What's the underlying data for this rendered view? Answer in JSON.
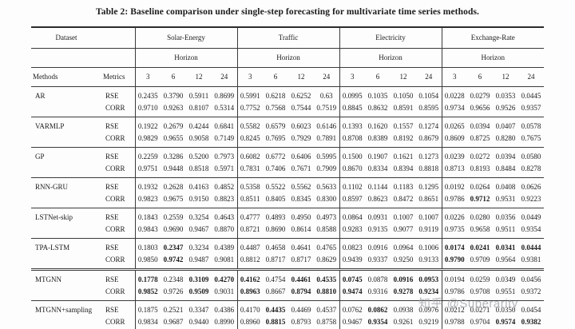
{
  "page": {
    "title": "Table 2: Baseline comparison under single-step forecasting for multivariate time series methods."
  },
  "watermark": {
    "text": "知乎 @Superarity"
  },
  "table": {
    "dataset_label": "Dataset",
    "methods_label": "Methods",
    "metrics_label": "Metrics",
    "horizon_label": "Horizon",
    "metric_names": [
      "RSE",
      "CORR"
    ],
    "groups": [
      "Solar-Energy",
      "Traffic",
      "Electricity",
      "Exchange-Rate"
    ],
    "horizons": [
      "3",
      "6",
      "12",
      "24"
    ],
    "rows": [
      {
        "method": "AR",
        "rse": [
          "0.2435",
          "0.3790",
          "0.5911",
          "0.8699",
          "0.5991",
          "0.6218",
          "0.6252",
          "0.63",
          "0.0995",
          "0.1035",
          "0.1050",
          "0.1054",
          "0.0228",
          "0.0279",
          "0.0353",
          "0.0445"
        ],
        "corr": [
          "0.9710",
          "0.9263",
          "0.8107",
          "0.5314",
          "0.7752",
          "0.7568",
          "0.7544",
          "0.7519",
          "0.8845",
          "0.8632",
          "0.8591",
          "0.8595",
          "0.9734",
          "0.9656",
          "0.9526",
          "0.9357"
        ],
        "rse_bold": [
          0,
          0,
          0,
          0,
          0,
          0,
          0,
          0,
          0,
          0,
          0,
          0,
          0,
          0,
          0,
          0
        ],
        "corr_bold": [
          0,
          0,
          0,
          0,
          0,
          0,
          0,
          0,
          0,
          0,
          0,
          0,
          0,
          0,
          0,
          0
        ]
      },
      {
        "method": "VARMLP",
        "rse": [
          "0.1922",
          "0.2679",
          "0.4244",
          "0.6841",
          "0.5582",
          "0.6579",
          "0.6023",
          "0.6146",
          "0.1393",
          "0.1620",
          "0.1557",
          "0.1274",
          "0.0265",
          "0.0394",
          "0.0407",
          "0.0578"
        ],
        "corr": [
          "0.9829",
          "0.9655",
          "0.9058",
          "0.7149",
          "0.8245",
          "0.7695",
          "0.7929",
          "0.7891",
          "0.8708",
          "0.8389",
          "0.8192",
          "0.8679",
          "0.8609",
          "0.8725",
          "0.8280",
          "0.7675"
        ],
        "rse_bold": [
          0,
          0,
          0,
          0,
          0,
          0,
          0,
          0,
          0,
          0,
          0,
          0,
          0,
          0,
          0,
          0
        ],
        "corr_bold": [
          0,
          0,
          0,
          0,
          0,
          0,
          0,
          0,
          0,
          0,
          0,
          0,
          0,
          0,
          0,
          0
        ]
      },
      {
        "method": "GP",
        "rse": [
          "0.2259",
          "0.3286",
          "0.5200",
          "0.7973",
          "0.6082",
          "0.6772",
          "0.6406",
          "0.5995",
          "0.1500",
          "0.1907",
          "0.1621",
          "0.1273",
          "0.0239",
          "0.0272",
          "0.0394",
          "0.0580"
        ],
        "corr": [
          "0.9751",
          "0.9448",
          "0.8518",
          "0.5971",
          "0.7831",
          "0.7406",
          "0.7671",
          "0.7909",
          "0.8670",
          "0.8334",
          "0.8394",
          "0.8818",
          "0.8713",
          "0.8193",
          "0.8484",
          "0.8278"
        ],
        "rse_bold": [
          0,
          0,
          0,
          0,
          0,
          0,
          0,
          0,
          0,
          0,
          0,
          0,
          0,
          0,
          0,
          0
        ],
        "corr_bold": [
          0,
          0,
          0,
          0,
          0,
          0,
          0,
          0,
          0,
          0,
          0,
          0,
          0,
          0,
          0,
          0
        ]
      },
      {
        "method": "RNN-GRU",
        "rse": [
          "0.1932",
          "0.2628",
          "0.4163",
          "0.4852",
          "0.5358",
          "0.5522",
          "0.5562",
          "0.5633",
          "0.1102",
          "0.1144",
          "0.1183",
          "0.1295",
          "0.0192",
          "0.0264",
          "0.0408",
          "0.0626"
        ],
        "corr": [
          "0.9823",
          "0.9675",
          "0.9150",
          "0.8823",
          "0.8511",
          "0.8405",
          "0.8345",
          "0.8300",
          "0.8597",
          "0.8623",
          "0.8472",
          "0.8651",
          "0.9786",
          "0.9712",
          "0.9531",
          "0.9223"
        ],
        "rse_bold": [
          0,
          0,
          0,
          0,
          0,
          0,
          0,
          0,
          0,
          0,
          0,
          0,
          0,
          0,
          0,
          0
        ],
        "corr_bold": [
          0,
          0,
          0,
          0,
          0,
          0,
          0,
          0,
          0,
          0,
          0,
          0,
          0,
          1,
          0,
          0
        ]
      },
      {
        "method": "LSTNet-skip",
        "rse": [
          "0.1843",
          "0.2559",
          "0.3254",
          "0.4643",
          "0.4777",
          "0.4893",
          "0.4950",
          "0.4973",
          "0.0864",
          "0.0931",
          "0.1007",
          "0.1007",
          "0.0226",
          "0.0280",
          "0.0356",
          "0.0449"
        ],
        "corr": [
          "0.9843",
          "0.9690",
          "0.9467",
          "0.8870",
          "0.8721",
          "0.8690",
          "0.8614",
          "0.8588",
          "0.9283",
          "0.9135",
          "0.9077",
          "0.9119",
          "0.9735",
          "0.9658",
          "0.9511",
          "0.9354"
        ],
        "rse_bold": [
          0,
          0,
          0,
          0,
          0,
          0,
          0,
          0,
          0,
          0,
          0,
          0,
          0,
          0,
          0,
          0
        ],
        "corr_bold": [
          0,
          0,
          0,
          0,
          0,
          0,
          0,
          0,
          0,
          0,
          0,
          0,
          0,
          0,
          0,
          0
        ]
      },
      {
        "method": "TPA-LSTM",
        "rse": [
          "0.1803",
          "0.2347",
          "0.3234",
          "0.4389",
          "0.4487",
          "0.4658",
          "0.4641",
          "0.4765",
          "0.0823",
          "0.0916",
          "0.0964",
          "0.1006",
          "0.0174",
          "0.0241",
          "0.0341",
          "0.0444"
        ],
        "corr": [
          "0.9850",
          "0.9742",
          "0.9487",
          "0.9081",
          "0.8812",
          "0.8717",
          "0.8717",
          "0.8629",
          "0.9439",
          "0.9337",
          "0.9250",
          "0.9133",
          "0.9790",
          "0.9709",
          "0.9564",
          "0.9381"
        ],
        "rse_bold": [
          0,
          1,
          0,
          0,
          0,
          0,
          0,
          0,
          0,
          0,
          0,
          0,
          1,
          1,
          1,
          1
        ],
        "corr_bold": [
          0,
          1,
          0,
          0,
          0,
          0,
          0,
          0,
          0,
          0,
          0,
          0,
          1,
          0,
          0,
          0
        ]
      },
      {
        "method": "MTGNN",
        "separator": "double",
        "rse": [
          "0.1778",
          "0.2348",
          "0.3109",
          "0.4270",
          "0.4162",
          "0.4754",
          "0.4461",
          "0.4535",
          "0.0745",
          "0.0878",
          "0.0916",
          "0.0953",
          "0.0194",
          "0.0259",
          "0.0349",
          "0.0456"
        ],
        "corr": [
          "0.9852",
          "0.9726",
          "0.9509",
          "0.9031",
          "0.8963",
          "0.8667",
          "0.8794",
          "0.8810",
          "0.9474",
          "0.9316",
          "0.9278",
          "0.9234",
          "0.9786",
          "0.9708",
          "0.9551",
          "0.9372"
        ],
        "rse_bold": [
          1,
          0,
          1,
          1,
          1,
          0,
          1,
          1,
          1,
          0,
          1,
          1,
          0,
          0,
          0,
          0
        ],
        "corr_bold": [
          1,
          0,
          1,
          0,
          1,
          0,
          1,
          1,
          1,
          0,
          1,
          1,
          0,
          0,
          0,
          0
        ]
      },
      {
        "method": "MTGNN+sampling",
        "rse": [
          "0.1875",
          "0.2521",
          "0.3347",
          "0.4386",
          "0.4170",
          "0.4435",
          "0.4469",
          "0.4537",
          "0.0762",
          "0.0862",
          "0.0938",
          "0.0976",
          "0.0212",
          "0.0271",
          "0.0350",
          "0.0454"
        ],
        "corr": [
          "0.9834",
          "0.9687",
          "0.9440",
          "0.8990",
          "0.8960",
          "0.8815",
          "0.8793",
          "0.8758",
          "0.9467",
          "0.9354",
          "0.9261",
          "0.9219",
          "0.9788",
          "0.9704",
          "0.9574",
          "0.9382"
        ],
        "rse_bold": [
          0,
          0,
          0,
          0,
          0,
          1,
          0,
          0,
          0,
          1,
          0,
          0,
          0,
          0,
          0,
          0
        ],
        "corr_bold": [
          0,
          0,
          0,
          0,
          0,
          1,
          0,
          0,
          0,
          1,
          0,
          0,
          0,
          0,
          1,
          1
        ]
      }
    ]
  }
}
